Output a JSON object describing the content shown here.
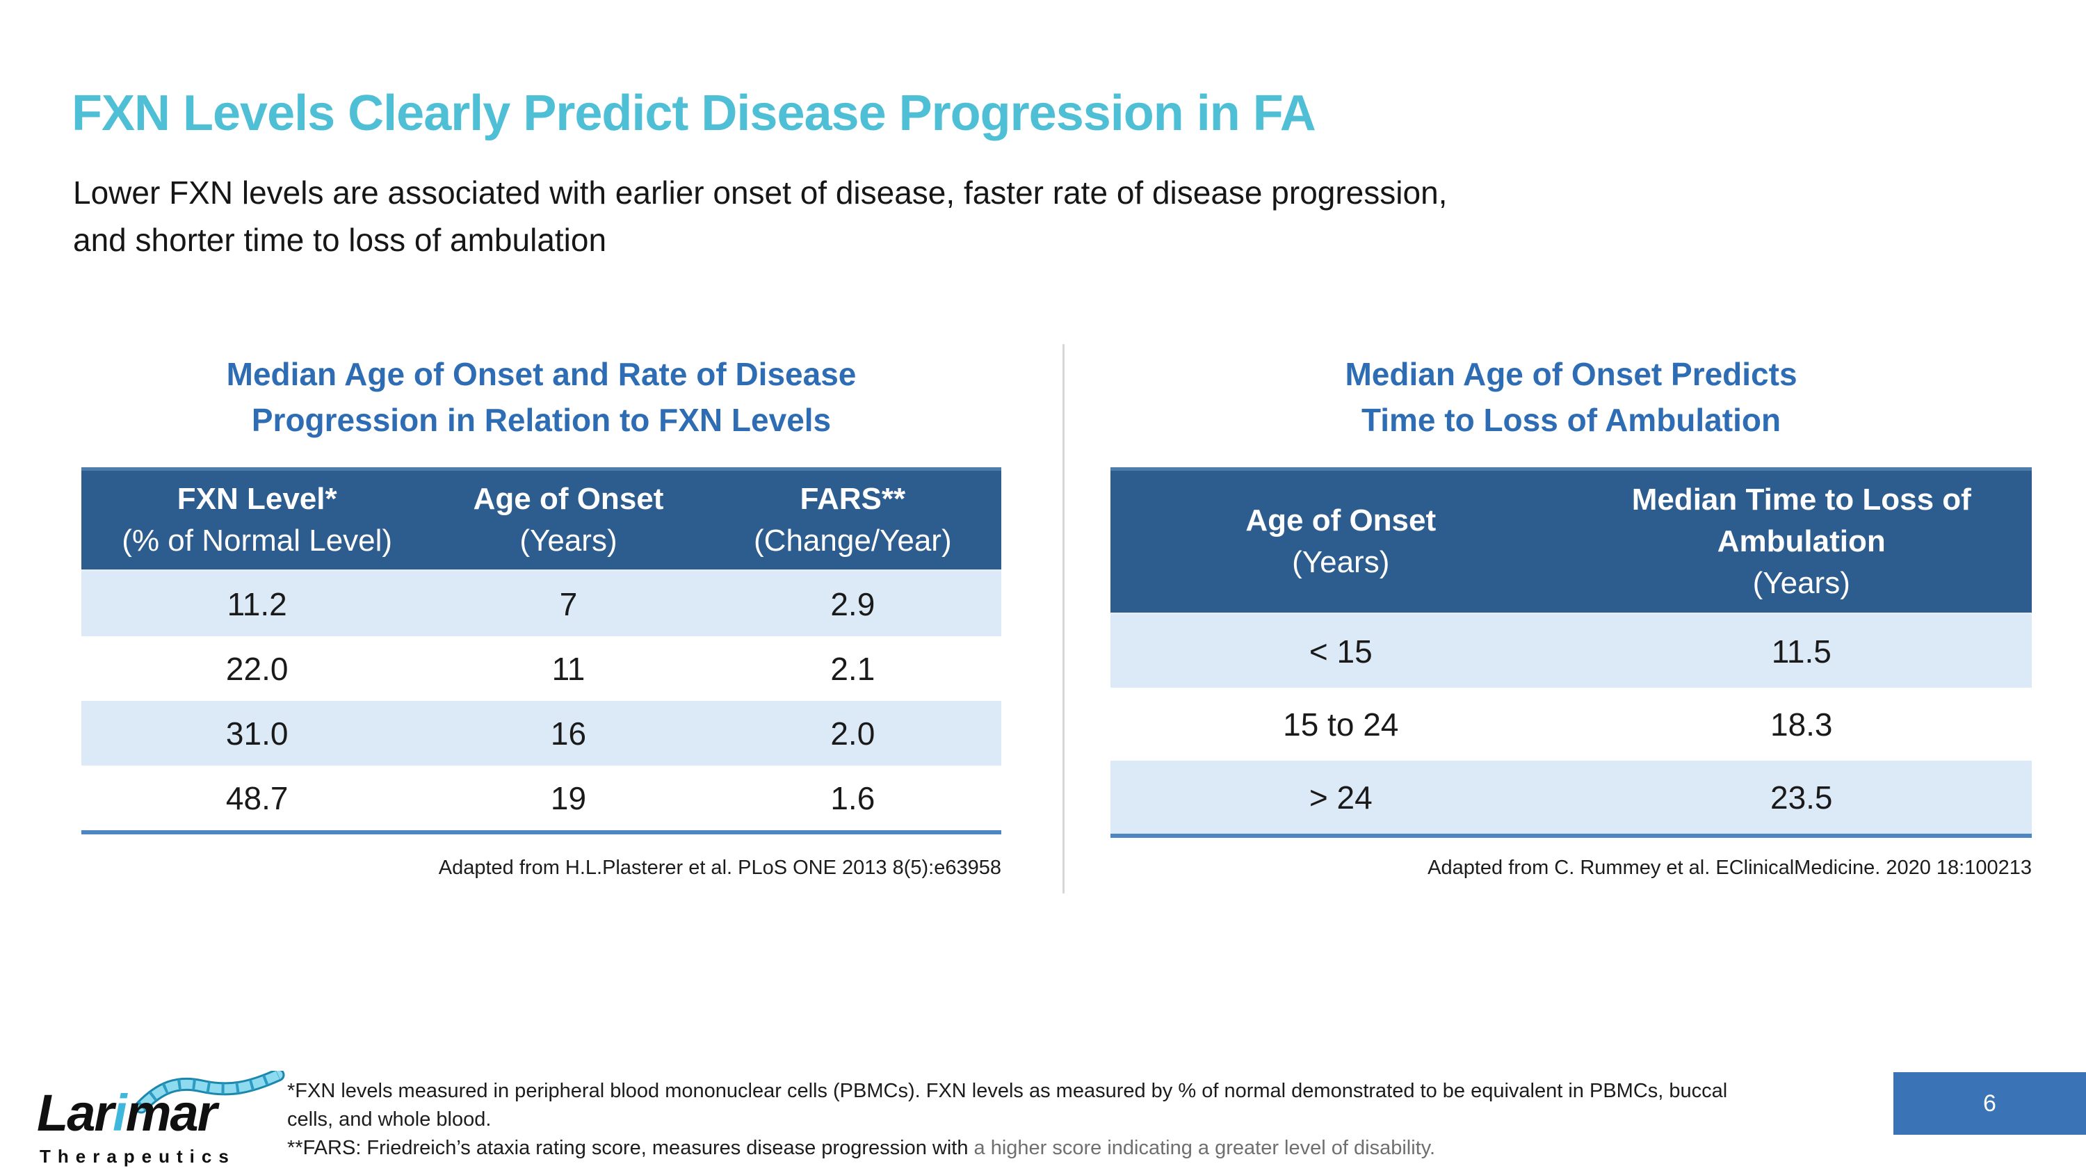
{
  "slide": {
    "title": "FXN Levels Clearly Predict Disease Progression in FA",
    "subtitle_line1": "Lower FXN levels are associated with earlier onset of disease, faster rate of disease progression,",
    "subtitle_line2": "and shorter time to loss of ambulation"
  },
  "left_panel": {
    "title_line1": "Median Age of Onset and Rate of Disease",
    "title_line2": "Progression in Relation to FXN Levels",
    "table": {
      "columns": [
        {
          "title": "FXN Level*",
          "sub": "(% of Normal Level)"
        },
        {
          "title": "Age of Onset",
          "sub": "(Years)"
        },
        {
          "title": "FARS**",
          "sub": "(Change/Year)"
        }
      ],
      "rows": [
        [
          "11.2",
          "7",
          "2.9"
        ],
        [
          "22.0",
          "11",
          "2.1"
        ],
        [
          "31.0",
          "16",
          "2.0"
        ],
        [
          "48.7",
          "19",
          "1.6"
        ]
      ],
      "caption": "Adapted from H.L.Plasterer et al. PLoS ONE 2013 8(5):e63958"
    }
  },
  "right_panel": {
    "title_line1": "Median Age of Onset Predicts",
    "title_line2": "Time to Loss of Ambulation",
    "table": {
      "columns": [
        {
          "title": "Age of Onset",
          "sub": "(Years)"
        },
        {
          "title": "Median Time to Loss of Ambulation",
          "sub": "(Years)"
        }
      ],
      "rows": [
        [
          "< 15",
          "11.5"
        ],
        [
          "15 to 24",
          "18.3"
        ],
        [
          "> 24",
          "23.5"
        ]
      ],
      "caption": "Adapted from C. Rummey et al. EClinicalMedicine. 2020 18:100213"
    }
  },
  "footer": {
    "logo": {
      "brand_prefix": "Lar",
      "brand_i": "i",
      "brand_suffix": "mar",
      "tagline": "Therapeutics",
      "helix_icon": "dna-helix-ribbon-icon"
    },
    "footnote1_line1": "*FXN levels measured in peripheral blood mononuclear cells (PBMCs). FXN levels as measured by % of normal demonstrated to be equivalent in PBMCs, buccal",
    "footnote1_line2": "cells, and whole blood.",
    "footnote2_black": "**FARS: Friedreich’s ataxia rating score, measures disease progression with ",
    "footnote2_gray": "a higher score indicating a greater level of disability.",
    "page_number": "6"
  },
  "colors": {
    "title_teal": "#4fbfd6",
    "panel_title_blue": "#2e6db4",
    "table_header_blue": "#2d5c8e",
    "table_stripe_blue": "#dce9f6",
    "table_bottom_border": "#4e86c4",
    "page_badge_blue": "#3a74b6",
    "footnote_gray": "#6f6f6f"
  }
}
